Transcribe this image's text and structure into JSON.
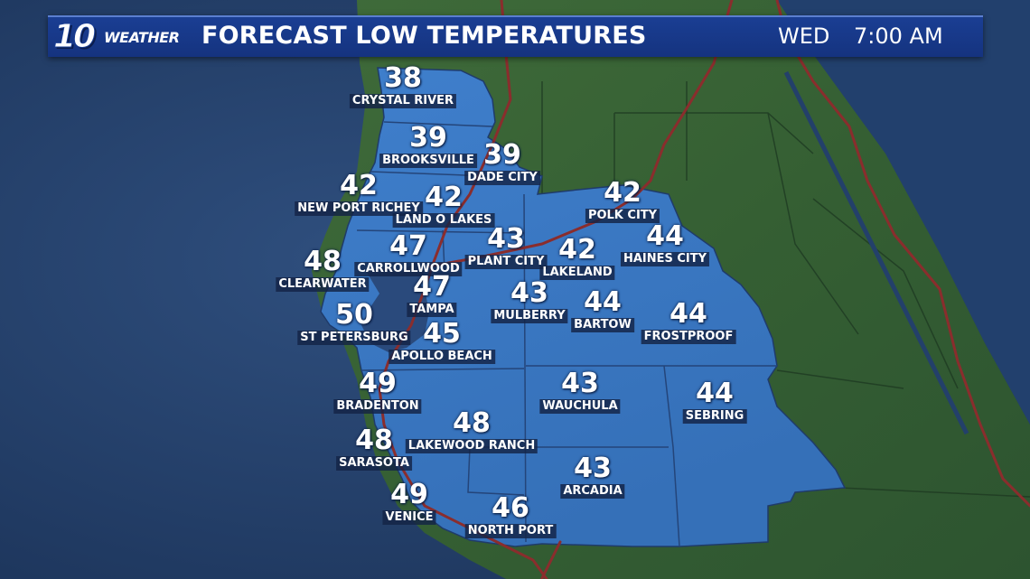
{
  "header": {
    "logo_number": "10",
    "logo_word": "WEATHER",
    "title": "FORECAST LOW TEMPERATURES",
    "day": "WED",
    "time": "7:00 AM"
  },
  "colors": {
    "header_bar": "#1a3e93",
    "forecast_region": "#3b78c4",
    "water": "#24406a",
    "land": "#3d6a37",
    "highway": "#8a2d2d"
  },
  "cities": [
    {
      "name": "CRYSTAL RIVER",
      "temp": "38"
    },
    {
      "name": "BROOKSVILLE",
      "temp": "39"
    },
    {
      "name": "DADE CITY",
      "temp": "39"
    },
    {
      "name": "NEW PORT RICHEY",
      "temp": "42"
    },
    {
      "name": "LAND O LAKES",
      "temp": "42"
    },
    {
      "name": "POLK CITY",
      "temp": "42"
    },
    {
      "name": "CARROLLWOOD",
      "temp": "47"
    },
    {
      "name": "PLANT CITY",
      "temp": "43"
    },
    {
      "name": "LAKELAND",
      "temp": "42"
    },
    {
      "name": "HAINES CITY",
      "temp": "44"
    },
    {
      "name": "CLEARWATER",
      "temp": "48"
    },
    {
      "name": "TAMPA",
      "temp": "47"
    },
    {
      "name": "MULBERRY",
      "temp": "43"
    },
    {
      "name": "BARTOW",
      "temp": "44"
    },
    {
      "name": "FROSTPROOF",
      "temp": "44"
    },
    {
      "name": "ST PETERSBURG",
      "temp": "50"
    },
    {
      "name": "APOLLO BEACH",
      "temp": "45"
    },
    {
      "name": "BRADENTON",
      "temp": "49"
    },
    {
      "name": "WAUCHULA",
      "temp": "43"
    },
    {
      "name": "SEBRING",
      "temp": "44"
    },
    {
      "name": "LAKEWOOD RANCH",
      "temp": "48"
    },
    {
      "name": "SARASOTA",
      "temp": "48"
    },
    {
      "name": "ARCADIA",
      "temp": "43"
    },
    {
      "name": "VENICE",
      "temp": "49"
    },
    {
      "name": "NORTH PORT",
      "temp": "46"
    }
  ]
}
